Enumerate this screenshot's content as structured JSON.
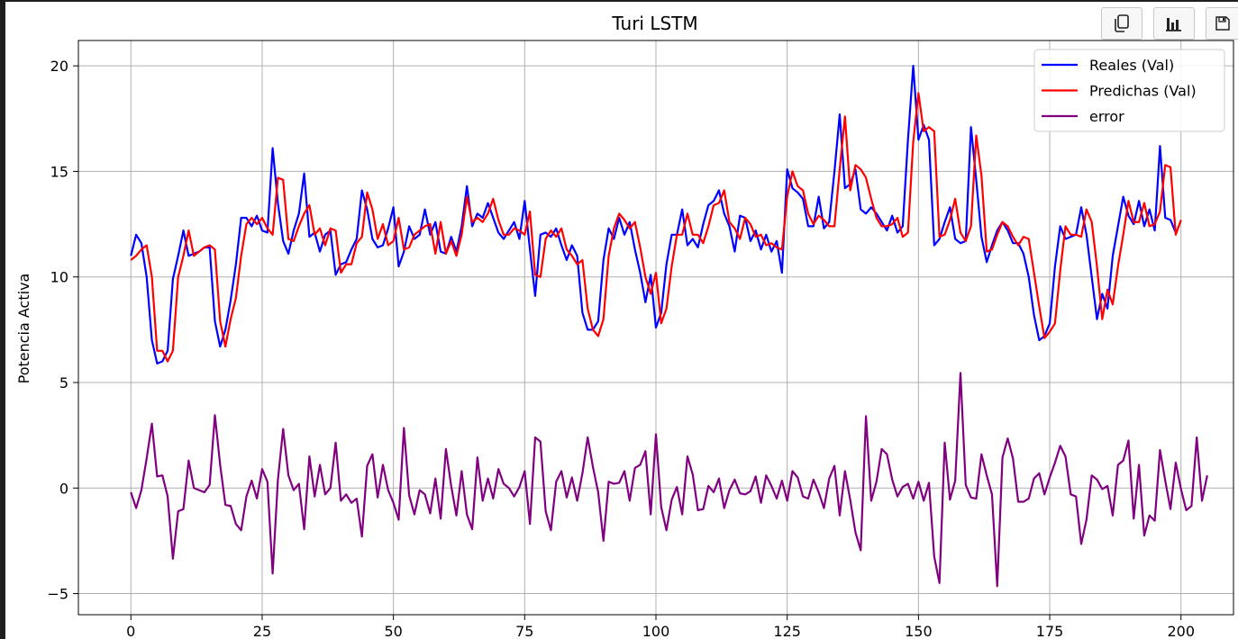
{
  "toolbar": {
    "items": [
      {
        "name": "copy-icon"
      },
      {
        "name": "bar-chart-icon"
      },
      {
        "name": "save-icon"
      }
    ]
  },
  "chart_data": {
    "type": "line",
    "title": "Turi LSTM",
    "xlabel": "",
    "ylabel": "Potencia Activa",
    "xlim": [
      -10,
      210
    ],
    "ylim": [
      -6,
      21.2
    ],
    "xticks": [
      0,
      25,
      50,
      75,
      100,
      125,
      150,
      175,
      200
    ],
    "yticks": [
      -5,
      0,
      5,
      10,
      15,
      20
    ],
    "grid": true,
    "legend_position": "top-right",
    "x_start": 0,
    "series": [
      {
        "name": "Reales (Val)",
        "color": "#0000ff",
        "values": [
          11.0,
          12.0,
          11.6,
          10.0,
          7.0,
          5.9,
          6.0,
          6.5,
          9.9,
          11.0,
          12.2,
          11.0,
          11.1,
          11.2,
          11.4,
          11.4,
          7.9,
          6.7,
          7.5,
          8.9,
          10.6,
          12.8,
          12.8,
          12.4,
          12.9,
          12.2,
          12.1,
          16.1,
          13.5,
          11.7,
          11.1,
          12.2,
          13.0,
          14.9,
          11.9,
          12.1,
          11.2,
          12.0,
          12.2,
          10.1,
          10.6,
          10.7,
          11.3,
          11.8,
          14.1,
          13.2,
          11.8,
          11.4,
          11.5,
          12.3,
          13.3,
          10.5,
          11.2,
          12.4,
          11.8,
          12.0,
          13.2,
          12.0,
          12.6,
          11.2,
          11.1,
          11.9,
          11.2,
          12.4,
          14.3,
          12.4,
          13.0,
          12.8,
          13.5,
          12.8,
          12.1,
          11.8,
          12.2,
          12.6,
          11.8,
          13.6,
          11.3,
          9.1,
          12.0,
          12.1,
          11.9,
          12.3,
          11.5,
          10.8,
          11.5,
          11.0,
          8.3,
          7.5,
          7.5,
          7.9,
          10.8,
          12.3,
          11.8,
          12.8,
          12.0,
          12.6,
          11.3,
          10.2,
          8.8,
          10.1,
          7.6,
          8.3,
          10.6,
          12.0,
          12.0,
          13.2,
          11.5,
          11.8,
          11.4,
          12.5,
          13.4,
          13.6,
          14.1,
          13.0,
          12.4,
          11.2,
          12.9,
          12.8,
          11.7,
          12.2,
          11.3,
          12.0,
          11.2,
          11.7,
          10.2,
          15.1,
          14.2,
          14.0,
          13.7,
          12.4,
          12.4,
          13.8,
          12.3,
          12.6,
          15.0,
          17.7,
          14.2,
          14.4,
          15.1,
          13.2,
          13.0,
          13.3,
          13.0,
          12.6,
          12.2,
          12.9,
          12.1,
          12.4,
          16.5,
          20.0,
          16.5,
          17.2,
          16.5,
          11.5,
          11.8,
          12.6,
          13.3,
          11.8,
          11.6,
          11.7,
          17.1,
          14.6,
          11.9,
          10.7,
          11.5,
          12.2,
          12.6,
          12.2,
          11.6,
          11.6,
          11.1,
          10.0,
          8.2,
          7.0,
          7.2,
          7.8,
          10.5,
          12.4,
          11.8,
          11.9,
          12.0,
          13.3,
          12.0,
          10.0,
          8.0,
          9.2,
          8.5,
          11.0,
          12.4,
          13.8,
          12.9,
          12.5,
          13.6,
          12.4,
          13.2,
          12.2,
          16.2,
          12.8,
          12.7,
          12.1
        ]
      },
      {
        "name": "Predichas (Val)",
        "color": "#ff0000",
        "values": [
          10.8,
          11.0,
          11.3,
          11.5,
          10.0,
          6.5,
          6.5,
          6.0,
          6.5,
          10.0,
          11.0,
          12.2,
          11.0,
          11.2,
          11.4,
          11.5,
          11.3,
          7.9,
          6.7,
          8.0,
          9.0,
          11.0,
          12.5,
          12.8,
          12.5,
          12.8,
          12.3,
          12.0,
          14.7,
          14.6,
          11.8,
          11.7,
          12.4,
          13.0,
          13.4,
          12.0,
          12.3,
          11.5,
          12.3,
          12.2,
          10.2,
          10.6,
          10.6,
          11.6,
          11.9,
          14.0,
          13.2,
          11.8,
          12.5,
          11.5,
          11.7,
          12.8,
          11.3,
          11.4,
          12.0,
          12.2,
          12.4,
          12.5,
          11.1,
          12.6,
          11.1,
          11.7,
          11.0,
          12.0,
          13.8,
          12.6,
          12.8,
          12.6,
          13.0,
          13.7,
          12.7,
          12.0,
          12.0,
          12.3,
          12.2,
          12.0,
          13.1,
          10.1,
          10.0,
          11.8,
          12.2,
          11.9,
          12.3,
          11.3,
          11.0,
          10.6,
          10.8,
          8.5,
          7.5,
          7.2,
          8.0,
          11.0,
          12.3,
          13.0,
          12.7,
          12.3,
          12.6,
          11.4,
          10.0,
          9.2,
          10.2,
          7.8,
          8.5,
          10.5,
          12.0,
          12.0,
          13.0,
          12.0,
          12.0,
          11.6,
          12.4,
          13.4,
          13.5,
          14.1,
          12.6,
          12.3,
          11.8,
          12.8,
          12.5,
          11.9,
          12.0,
          11.5,
          11.6,
          11.4,
          11.3,
          13.8,
          15.0,
          14.3,
          14.1,
          13.0,
          12.5,
          12.9,
          12.7,
          12.4,
          12.4,
          15.1,
          17.6,
          14.1,
          15.3,
          15.1,
          14.7,
          13.7,
          12.8,
          12.4,
          12.4,
          12.5,
          12.8,
          11.9,
          12.1,
          16.4,
          18.7,
          16.9,
          17.1,
          16.9,
          11.9,
          12.0,
          12.7,
          13.7,
          12.1,
          11.7,
          12.4,
          16.7,
          14.8,
          11.2,
          11.3,
          12.0,
          12.6,
          12.4,
          11.9,
          11.5,
          11.9,
          11.8,
          10.2,
          8.6,
          7.1,
          7.4,
          7.8,
          10.3,
          12.4,
          12.0,
          12.0,
          11.9,
          13.2,
          12.6,
          10.5,
          8.0,
          9.4,
          8.7,
          10.5,
          12.0,
          13.6,
          12.6,
          12.6,
          13.5,
          12.4,
          12.5,
          13.1,
          15.3,
          15.2,
          12.0,
          12.7
        ]
      },
      {
        "name": "error",
        "color": "#800080",
        "values": [
          -0.2,
          -0.95,
          -0.1,
          1.4,
          3.05,
          0.55,
          0.6,
          -0.4,
          -3.35,
          -1.1,
          -1.0,
          1.3,
          0.0,
          -0.1,
          -0.2,
          0.15,
          3.45,
          1.1,
          -0.8,
          -0.85,
          -1.7,
          -2.0,
          -0.4,
          0.35,
          -0.5,
          0.9,
          0.3,
          -4.05,
          0.4,
          2.8,
          0.6,
          -0.1,
          0.2,
          -1.95,
          1.5,
          -0.4,
          1.1,
          -0.3,
          0.0,
          2.15,
          -0.6,
          -0.3,
          -0.7,
          -0.5,
          -2.3,
          1.05,
          1.6,
          -0.45,
          1.1,
          -0.1,
          -0.7,
          -1.5,
          2.85,
          -0.35,
          -1.25,
          -0.1,
          -0.3,
          -1.2,
          0.45,
          -1.45,
          1.85,
          0.1,
          -1.3,
          0.8,
          -1.25,
          -1.95,
          1.45,
          -0.6,
          0.45,
          -0.5,
          0.9,
          0.2,
          0.0,
          -0.4,
          0.05,
          0.8,
          -1.7,
          2.4,
          2.2,
          -1.1,
          -2.0,
          0.3,
          0.8,
          -0.45,
          0.5,
          -0.6,
          0.7,
          2.4,
          1.0,
          -0.2,
          -2.5,
          0.3,
          0.2,
          0.25,
          0.8,
          -0.6,
          0.95,
          1.1,
          1.75,
          -1.25,
          2.55,
          -0.9,
          -2.0,
          -0.55,
          0.05,
          -1.25,
          1.5,
          0.65,
          -1.05,
          -1.0,
          0.1,
          -0.2,
          0.45,
          -0.95,
          -0.1,
          0.4,
          -0.25,
          -0.3,
          -0.15,
          0.55,
          -0.7,
          0.6,
          0.1,
          -0.5,
          0.35,
          -0.6,
          0.8,
          0.5,
          -0.4,
          -0.5,
          0.4,
          -0.2,
          -0.95,
          0.45,
          1.05,
          -1.3,
          0.8,
          -0.55,
          -2.1,
          -2.95,
          3.4,
          -0.6,
          0.3,
          1.85,
          1.6,
          0.4,
          -0.4,
          0.05,
          0.2,
          -0.5,
          0.3,
          -0.6,
          0.25,
          -3.25,
          -4.5,
          2.15,
          -0.55,
          0.35,
          5.45,
          0.15,
          -0.45,
          -0.5,
          1.6,
          0.6,
          -0.3,
          -4.65,
          1.45,
          2.35,
          1.4,
          -0.65,
          -0.65,
          -0.5,
          0.45,
          0.7,
          -0.3,
          0.5,
          1.2,
          2.0,
          1.5,
          -0.3,
          -0.4,
          -2.65,
          -1.5,
          0.6,
          0.4,
          -0.05,
          0.1,
          -1.3,
          1.1,
          1.3,
          2.25,
          -1.45,
          1.1,
          -2.25,
          -1.3,
          -1.55,
          1.8,
          0.35,
          -1.0,
          1.2,
          -0.05,
          -1.05,
          -0.85,
          2.4,
          -0.6,
          0.6
        ]
      }
    ]
  }
}
